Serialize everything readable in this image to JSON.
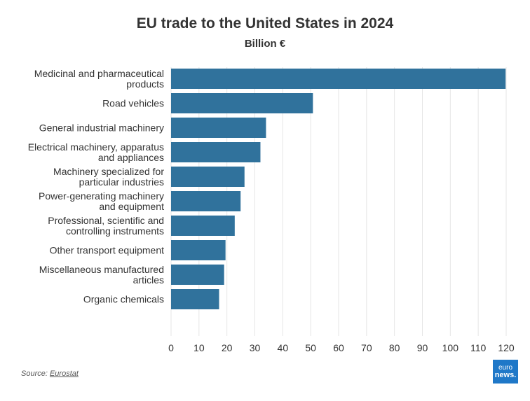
{
  "chart_data": {
    "type": "bar",
    "orientation": "horizontal",
    "title": "EU trade to the United States in 2024",
    "subtitle": "Billion €",
    "categories": [
      [
        "Medicinal and pharmaceutical",
        "products"
      ],
      [
        "Road vehicles"
      ],
      [
        "General industrial machinery"
      ],
      [
        "Electrical machinery, apparatus",
        "and appliances"
      ],
      [
        "Machinery specialized for",
        "particular industries"
      ],
      [
        "Power-generating machinery",
        "and equipment"
      ],
      [
        "Professional, scientific and",
        "controlling instruments"
      ],
      [
        "Other transport equipment"
      ],
      [
        "Miscellaneous manufactured",
        "articles"
      ],
      [
        "Organic chemicals"
      ]
    ],
    "values": [
      119.8,
      50.8,
      34.0,
      32.0,
      26.3,
      24.9,
      22.8,
      19.5,
      19.0,
      17.2
    ],
    "xlim": [
      0,
      120
    ],
    "xticks": [
      "0",
      "10",
      "20",
      "30",
      "40",
      "50",
      "60",
      "70",
      "80",
      "90",
      "100",
      "110",
      "120"
    ],
    "grid": "vertical",
    "bar_color": "#30729c",
    "grid_color": "#e6e6e6"
  },
  "footer": {
    "source_prefix": "Source: ",
    "source_link": "Eurostat",
    "logo_line1": "euro",
    "logo_line2": "news."
  }
}
